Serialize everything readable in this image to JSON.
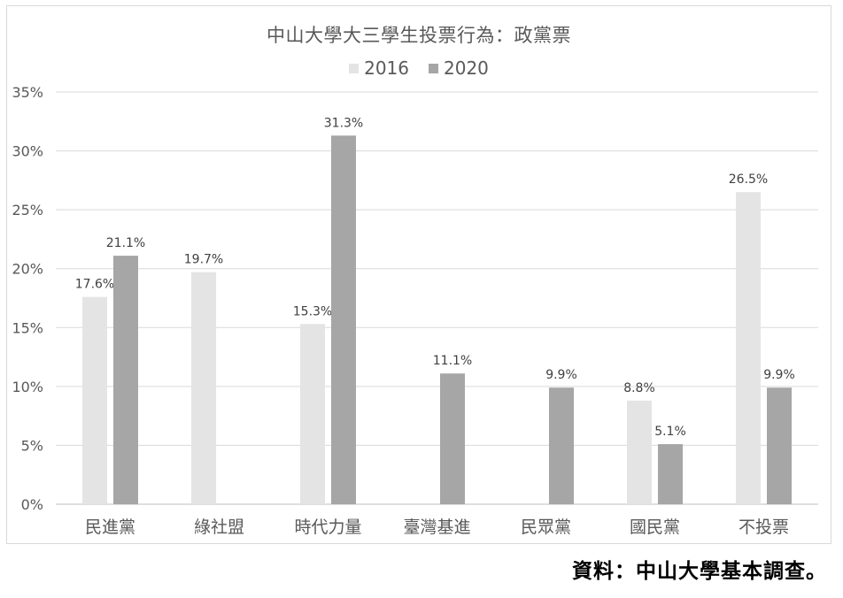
{
  "chart_data": {
    "type": "bar",
    "title": "中山大學大三學生投票行為：政黨票",
    "categories": [
      "民進黨",
      "綠社盟",
      "時代力量",
      "臺灣基進",
      "民眾黨",
      "國民黨",
      "不投票"
    ],
    "series": [
      {
        "name": "2016",
        "color": "#e4e4e4",
        "values": [
          17.6,
          19.7,
          15.3,
          null,
          null,
          8.8,
          26.5
        ],
        "labels": [
          "17.6%",
          "19.7%",
          "15.3%",
          "",
          "",
          "8.8%",
          "26.5%"
        ]
      },
      {
        "name": "2020",
        "color": "#a6a6a6",
        "values": [
          21.1,
          null,
          31.3,
          11.1,
          9.9,
          5.1,
          9.9
        ],
        "labels": [
          "21.1%",
          "",
          "31.3%",
          "11.1%",
          "9.9%",
          "5.1%",
          "9.9%"
        ]
      }
    ],
    "ylim": [
      0,
      35
    ],
    "yticks": [
      0,
      5,
      10,
      15,
      20,
      25,
      30,
      35
    ],
    "ytick_labels": [
      "0%",
      "5%",
      "10%",
      "15%",
      "20%",
      "25%",
      "30%",
      "35%"
    ],
    "grid": true,
    "legend_position": "top-center",
    "xlabel": "",
    "ylabel": ""
  },
  "source_note": "資料：中山大學基本調查。"
}
